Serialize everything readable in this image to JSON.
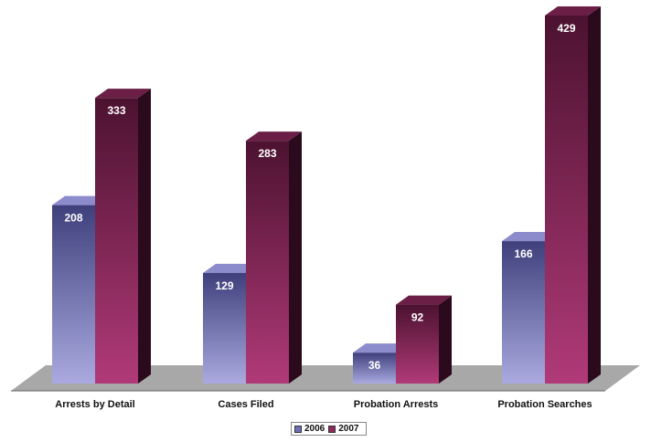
{
  "chart_data": {
    "type": "bar",
    "style": "3d",
    "categories": [
      "Arrests by Detail",
      "Cases Filed",
      "Probation Arrests",
      "Probation Searches"
    ],
    "series": [
      {
        "name": "2006",
        "values": [
          208,
          129,
          36,
          166
        ],
        "color": "#6f6fb5"
      },
      {
        "name": "2007",
        "values": [
          333,
          283,
          92,
          429
        ],
        "color": "#8e2a5e"
      }
    ],
    "ylim": [
      0,
      429
    ],
    "grid": false,
    "legend_position": "bottom-center"
  }
}
